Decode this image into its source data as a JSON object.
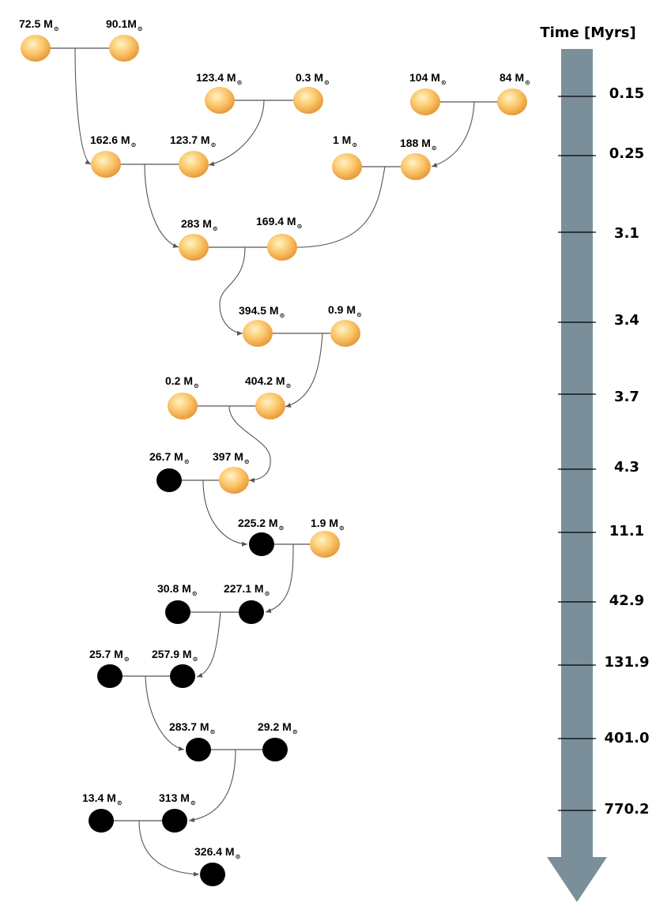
{
  "timeline": {
    "title": "Time [Myrs]",
    "arrow_color": "#7a8f99",
    "ticks": [
      "0.15",
      "0.25",
      "3.1",
      "3.4",
      "3.7",
      "4.3",
      "11.1",
      "42.9",
      "131.9",
      "401.0",
      "770.2"
    ]
  },
  "colors": {
    "star_light": "#fff3c4",
    "star_mid": "#fbc66a",
    "star_dark": "#e89a3a",
    "black_hole": "#000000",
    "line": "#555555"
  },
  "mass_unit_symbol": "⊙",
  "bodies": [
    {
      "id": "s1",
      "type": "star",
      "mass": "72.5 M"
    },
    {
      "id": "s2",
      "type": "star",
      "mass": "90.1M"
    },
    {
      "id": "s3",
      "type": "star",
      "mass": "123.4 M"
    },
    {
      "id": "s4",
      "type": "star",
      "mass": "0.3 M"
    },
    {
      "id": "s5",
      "type": "star",
      "mass": "104 M"
    },
    {
      "id": "s6",
      "type": "star",
      "mass": "84 M"
    },
    {
      "id": "s7",
      "type": "star",
      "mass": "162.6 M"
    },
    {
      "id": "s8",
      "type": "star",
      "mass": "123.7 M"
    },
    {
      "id": "s9",
      "type": "star",
      "mass": "1 M"
    },
    {
      "id": "s10",
      "type": "star",
      "mass": "188 M"
    },
    {
      "id": "s11",
      "type": "star",
      "mass": "283 M"
    },
    {
      "id": "s12",
      "type": "star",
      "mass": "169.4 M"
    },
    {
      "id": "s13",
      "type": "star",
      "mass": "394.5 M"
    },
    {
      "id": "s14",
      "type": "star",
      "mass": "0.9 M"
    },
    {
      "id": "s15",
      "type": "star",
      "mass": "0.2 M"
    },
    {
      "id": "s16",
      "type": "star",
      "mass": "404.2 M"
    },
    {
      "id": "b1",
      "type": "bh",
      "mass": "26.7 M"
    },
    {
      "id": "s17",
      "type": "star",
      "mass": "397 M"
    },
    {
      "id": "b2",
      "type": "bh",
      "mass": "225.2 M"
    },
    {
      "id": "s18",
      "type": "star",
      "mass": "1.9 M"
    },
    {
      "id": "b3",
      "type": "bh",
      "mass": "30.8 M"
    },
    {
      "id": "b4",
      "type": "bh",
      "mass": "227.1 M"
    },
    {
      "id": "b5",
      "type": "bh",
      "mass": "25.7 M"
    },
    {
      "id": "b6",
      "type": "bh",
      "mass": "257.9 M"
    },
    {
      "id": "b7",
      "type": "bh",
      "mass": "283.7 M"
    },
    {
      "id": "b8",
      "type": "bh",
      "mass": "29.2 M"
    },
    {
      "id": "b9",
      "type": "bh",
      "mass": "13.4 M"
    },
    {
      "id": "b10",
      "type": "bh",
      "mass": "313 M"
    },
    {
      "id": "b11",
      "type": "bh",
      "mass": "326.4 M"
    }
  ]
}
